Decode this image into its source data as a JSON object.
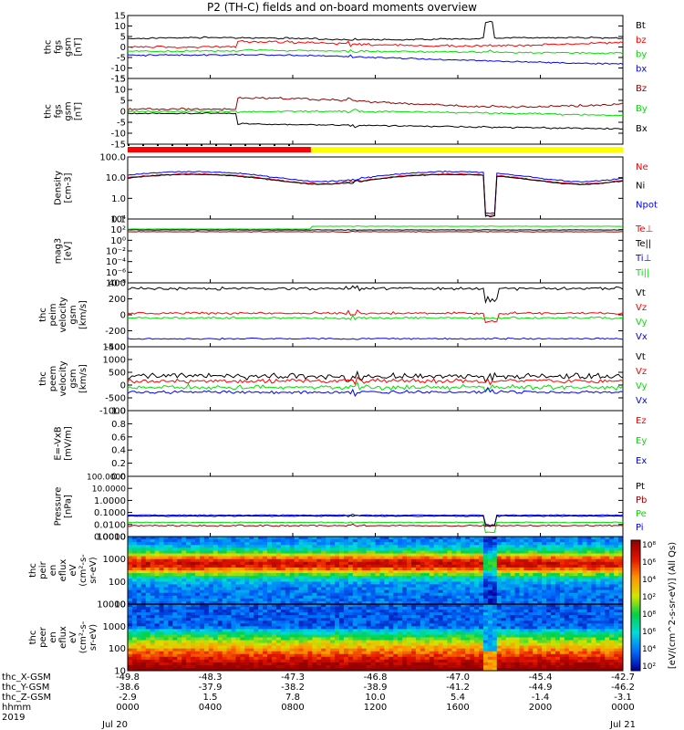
{
  "title": "P2 (TH-C) fields and on-board moments overview",
  "colors": {
    "black": "#000000",
    "red": "#ff0000",
    "green": "#00e000",
    "blue": "#0000ff",
    "darkred": "#990000",
    "yellow": "#ffff00"
  },
  "chart_data": [
    {
      "id": "fgs_gsm",
      "type": "line",
      "ylabel_lines": [
        "thc",
        "fgs",
        "gsm",
        "[nT]"
      ],
      "ylim": [
        -15,
        15
      ],
      "ticks": [
        "15",
        "10",
        "5",
        "0",
        "-5",
        "-10",
        "-15"
      ],
      "series": [
        {
          "name": "Bt",
          "color": "black"
        },
        {
          "name": "bz",
          "color": "red"
        },
        {
          "name": "by",
          "color": "green"
        },
        {
          "name": "bx",
          "color": "blue"
        }
      ]
    },
    {
      "id": "fgs_gse",
      "type": "line",
      "ylabel_lines": [
        "thc",
        "fgs",
        "gsm",
        "[nT]"
      ],
      "ylim": [
        -15,
        15
      ],
      "ticks": [
        "15",
        "10",
        "5",
        "0",
        "-5",
        "-10",
        "-15"
      ],
      "series": [
        {
          "name": "Bz",
          "color": "darkred"
        },
        {
          "name": "By",
          "color": "green"
        },
        {
          "name": "Bx",
          "color": "black"
        }
      ]
    },
    {
      "id": "density",
      "type": "line",
      "ylabel_lines": [
        "Density",
        "[cm-3]"
      ],
      "scale": "log",
      "ylim": [
        0.1,
        100
      ],
      "ticks": [
        "100.0",
        "10.0",
        "1.0",
        "0.1"
      ],
      "series": [
        {
          "name": "Ne",
          "color": "red"
        },
        {
          "name": "Ni",
          "color": "black"
        },
        {
          "name": "Npot",
          "color": "blue"
        }
      ]
    },
    {
      "id": "temperature",
      "type": "line",
      "ylabel_lines": [
        "mag3",
        "[eV]"
      ],
      "scale": "log",
      "ticks": [
        "10⁴",
        "10²",
        "10⁰",
        "10⁻²",
        "10⁻⁴",
        "10⁻⁶",
        "10⁻⁸"
      ],
      "series": [
        {
          "name": "Te⊥",
          "color": "red"
        },
        {
          "name": "Te||",
          "color": "black"
        },
        {
          "name": "Ti⊥",
          "color": "blue"
        },
        {
          "name": "Ti||",
          "color": "green"
        }
      ]
    },
    {
      "id": "peim_velocity",
      "type": "line",
      "ylabel_lines": [
        "thc",
        "peim",
        "velocity",
        "gsm",
        "[km/s]"
      ],
      "ylim": [
        -400,
        400
      ],
      "ticks": [
        "400",
        "200",
        "0",
        "-200",
        "-400"
      ],
      "series": [
        {
          "name": "Vt",
          "color": "black"
        },
        {
          "name": "Vz",
          "color": "red"
        },
        {
          "name": "Vy",
          "color": "green"
        },
        {
          "name": "Vx",
          "color": "blue"
        }
      ]
    },
    {
      "id": "peem_velocity",
      "type": "line",
      "ylabel_lines": [
        "thc",
        "peem",
        "velocity",
        "gsm",
        "[km/s]"
      ],
      "ylim": [
        -1500,
        1500
      ],
      "ticks": [
        "1500",
        "1000",
        "500",
        "0",
        "-500",
        "-1000"
      ],
      "series": [
        {
          "name": "Vt",
          "color": "black"
        },
        {
          "name": "Vz",
          "color": "red"
        },
        {
          "name": "Vy",
          "color": "green"
        },
        {
          "name": "Vx",
          "color": "blue"
        }
      ]
    },
    {
      "id": "efield",
      "type": "line",
      "ylabel_lines": [
        "E=-VxB",
        "[mV/m]"
      ],
      "ylim": [
        0,
        1
      ],
      "ticks": [
        "1.0",
        "0.8",
        "0.6",
        "0.4",
        "0.2",
        "0.0"
      ],
      "series": [
        {
          "name": "Ez",
          "color": "red"
        },
        {
          "name": "Ey",
          "color": "green"
        },
        {
          "name": "Ex",
          "color": "blue"
        }
      ]
    },
    {
      "id": "pressure",
      "type": "line",
      "ylabel_lines": [
        "Pressure",
        "[nPa]"
      ],
      "scale": "log",
      "ylim": [
        0.001,
        100
      ],
      "ticks": [
        "100.0000",
        "10.0000",
        "1.0000",
        "0.1000",
        "0.0100",
        "0.0010"
      ],
      "series": [
        {
          "name": "Pt",
          "color": "black"
        },
        {
          "name": "Pb",
          "color": "darkred"
        },
        {
          "name": "Pe",
          "color": "green"
        },
        {
          "name": "Pi",
          "color": "blue"
        }
      ]
    },
    {
      "id": "peir_spectrogram",
      "type": "heatmap",
      "ylabel_lines": [
        "thc",
        "peir",
        "en",
        "eflux",
        "eV",
        "(cm²-s-",
        "sr-eV)"
      ],
      "scale": "log",
      "ticks": [
        "10000",
        "1000",
        "100",
        "10"
      ]
    },
    {
      "id": "peer_spectrogram",
      "type": "heatmap",
      "ylabel_lines": [
        "thc",
        "peer",
        "en",
        "eflux",
        "eV",
        "(cm²-s-",
        "sr-eV)"
      ],
      "scale": "log",
      "ticks": [
        "10000",
        "1000",
        "100",
        "10"
      ]
    }
  ],
  "colorbar": {
    "ticks": [
      "10⁸",
      "10⁶",
      "10⁴",
      "10²",
      "10⁸",
      "10⁶",
      "10⁴",
      "10²"
    ],
    "label": "[eV/(cm^2-s-sr-eV)] (All Qs)"
  },
  "xaxis": {
    "row_labels": [
      "thc_X-GSM",
      "thc_Y-GSM",
      "thc_Z-GSM",
      "hhmm",
      "2019"
    ],
    "columns": [
      {
        "x": "-49.8",
        "y": "-38.6",
        "z": "-2.9",
        "hhmm": "0000",
        "date": "Jul 20"
      },
      {
        "x": "-48.3",
        "y": "-37.9",
        "z": "1.5",
        "hhmm": "0400",
        "date": ""
      },
      {
        "x": "-47.3",
        "y": "-38.2",
        "z": "7.8",
        "hhmm": "0800",
        "date": ""
      },
      {
        "x": "-46.8",
        "y": "-38.9",
        "z": "10.0",
        "hhmm": "1200",
        "date": ""
      },
      {
        "x": "-47.0",
        "y": "-41.2",
        "z": "5.4",
        "hhmm": "1600",
        "date": ""
      },
      {
        "x": "-45.4",
        "y": "-44.9",
        "z": "-1.4",
        "hhmm": "2000",
        "date": ""
      },
      {
        "x": "-42.7",
        "y": "-46.2",
        "z": "-3.1",
        "hhmm": "0000",
        "date": "Jul 21"
      }
    ]
  }
}
